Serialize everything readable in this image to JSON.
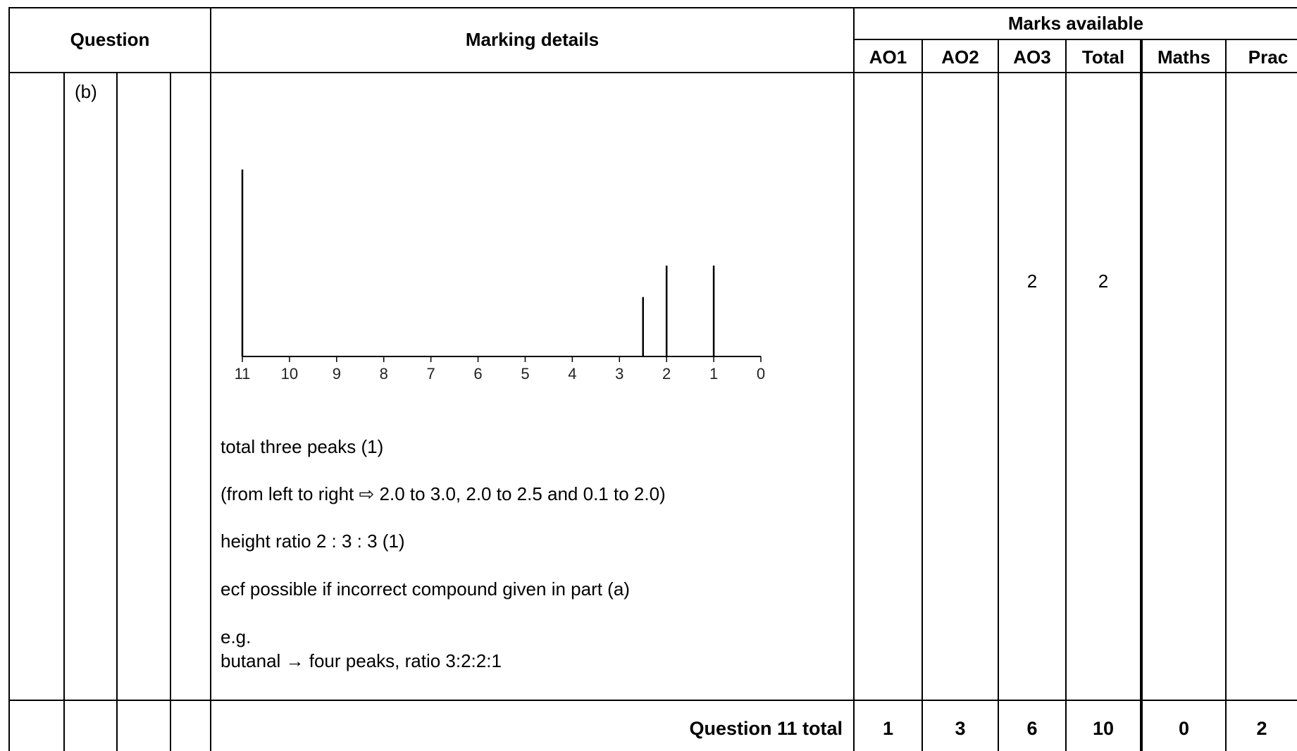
{
  "header": {
    "question": "Question",
    "marking_details": "Marking details",
    "marks_available": "Marks available",
    "columns": [
      "AO1",
      "AO2",
      "AO3",
      "Total",
      "Maths",
      "Prac"
    ]
  },
  "row": {
    "part": "(b)",
    "marks": {
      "AO1": "",
      "AO2": "",
      "AO3": "2",
      "Total": "2",
      "Maths": "",
      "Prac": ""
    },
    "spectrum": {
      "x_ticks": [
        "11",
        "10",
        "9",
        "8",
        "7",
        "6",
        "5",
        "4",
        "3",
        "2",
        "1",
        "0"
      ],
      "peaks": [
        {
          "ppm": 11,
          "height": 1.0
        },
        {
          "ppm": 2.5,
          "height": 0.34
        },
        {
          "ppm": 2.0,
          "height": 0.52
        },
        {
          "ppm": 1.0,
          "height": 0.52
        }
      ]
    },
    "lines": [
      "total three peaks (1)",
      "(from left to right ⇨ 2.0 to 3.0, 2.0 to 2.5 and 0.1 to 2.0)",
      "height ratio 2 : 3 : 3 (1)",
      "ecf possible if incorrect compound given in part (a)",
      "e.g.",
      "butanal → four peaks, ratio 3:2:2:1"
    ]
  },
  "total_row": {
    "label": "Question 11 total",
    "values": [
      "1",
      "3",
      "6",
      "10",
      "0",
      "2"
    ]
  }
}
